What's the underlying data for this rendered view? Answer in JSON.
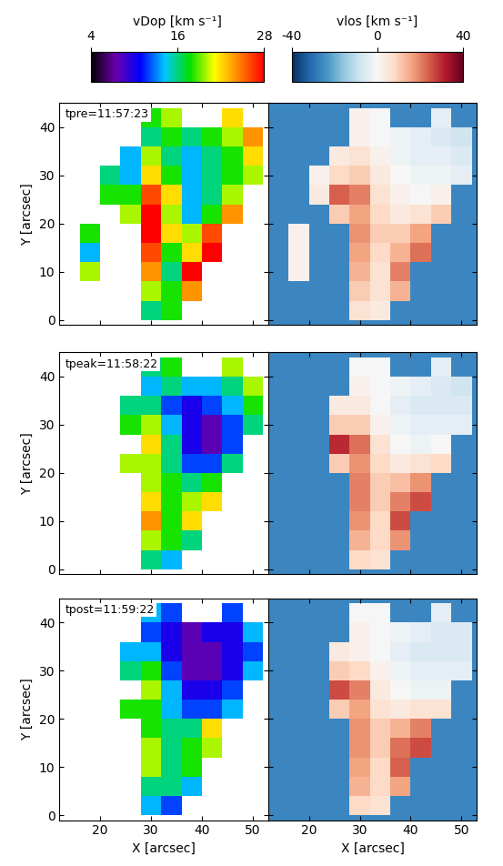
{
  "chart_data": [
    {
      "type": "heatmap",
      "annotation": "tpre=11:57:23",
      "y_label": "Y [arcsec]",
      "colorbar": {
        "label": "vDop [km s⁻¹]",
        "ticks": [
          4,
          16,
          28
        ]
      },
      "color_range": [
        4,
        28
      ],
      "xlim": [
        12,
        53
      ],
      "ylim": [
        -1,
        45
      ],
      "xticks": [
        20,
        30,
        40,
        50
      ],
      "yticks": [
        0,
        10,
        20,
        30,
        40
      ],
      "tick_labels": "y",
      "x_edges": [
        12,
        16,
        20,
        24,
        28,
        32,
        36,
        40,
        44,
        48,
        52
      ],
      "y_edges": [
        0,
        4,
        8,
        12,
        16,
        20,
        24,
        28,
        32,
        36,
        40,
        44
      ],
      "cells": [
        [
          null,
          null,
          null,
          null,
          16,
          18,
          null,
          null,
          null,
          null
        ],
        [
          null,
          null,
          null,
          null,
          20,
          18,
          24,
          null,
          null,
          null
        ],
        [
          null,
          20,
          null,
          null,
          24,
          16,
          28,
          null,
          null,
          null
        ],
        [
          null,
          14,
          null,
          null,
          26,
          18,
          22,
          28,
          null,
          null
        ],
        [
          null,
          18,
          null,
          null,
          28,
          22,
          20,
          26,
          null,
          null
        ],
        [
          null,
          null,
          null,
          20,
          28,
          20,
          14,
          18,
          24,
          null
        ],
        [
          null,
          null,
          18,
          18,
          26,
          22,
          14,
          16,
          20,
          null
        ],
        [
          null,
          null,
          16,
          14,
          22,
          18,
          14,
          16,
          18,
          20
        ],
        [
          null,
          null,
          null,
          14,
          20,
          16,
          14,
          16,
          18,
          22
        ],
        [
          null,
          null,
          null,
          null,
          16,
          18,
          16,
          18,
          20,
          24
        ],
        [
          null,
          null,
          null,
          null,
          18,
          20,
          null,
          null,
          22,
          null
        ]
      ]
    },
    {
      "type": "heatmap",
      "colorbar": {
        "label": "vlos [km s⁻¹]",
        "ticks": [
          -40,
          0,
          40
        ]
      },
      "color_range": [
        -40,
        40
      ],
      "xlim": [
        12,
        53
      ],
      "ylim": [
        -1,
        45
      ],
      "xticks": [
        20,
        30,
        40,
        50
      ],
      "yticks": [
        0,
        10,
        20,
        30,
        40
      ],
      "tick_labels": false,
      "x_edges": [
        12,
        16,
        20,
        24,
        28,
        32,
        36,
        40,
        44,
        48,
        52
      ],
      "y_edges": [
        0,
        4,
        8,
        12,
        16,
        20,
        24,
        28,
        32,
        36,
        40,
        44
      ],
      "cells": [
        [
          null,
          null,
          null,
          null,
          6,
          4,
          null,
          null,
          null,
          null
        ],
        [
          null,
          null,
          null,
          null,
          10,
          6,
          14,
          null,
          null,
          null
        ],
        [
          null,
          2,
          null,
          null,
          14,
          6,
          20,
          null,
          null,
          null
        ],
        [
          null,
          2,
          null,
          null,
          16,
          8,
          14,
          22,
          null,
          null
        ],
        [
          null,
          2,
          null,
          null,
          18,
          10,
          10,
          16,
          null,
          null
        ],
        [
          null,
          null,
          null,
          10,
          16,
          8,
          4,
          6,
          10,
          null
        ],
        [
          null,
          null,
          4,
          24,
          20,
          6,
          2,
          0,
          2,
          null
        ],
        [
          null,
          null,
          2,
          8,
          10,
          4,
          0,
          -2,
          -2,
          -4
        ],
        [
          null,
          null,
          null,
          4,
          6,
          2,
          -2,
          -4,
          -4,
          -6
        ],
        [
          null,
          null,
          null,
          null,
          2,
          0,
          -2,
          -4,
          -6,
          -8
        ],
        [
          null,
          null,
          null,
          null,
          2,
          0,
          null,
          null,
          -4,
          null
        ]
      ]
    },
    {
      "type": "heatmap",
      "annotation": "tpeak=11:58:22",
      "y_label": "Y [arcsec]",
      "color_range": [
        4,
        28
      ],
      "xlim": [
        12,
        53
      ],
      "ylim": [
        -1,
        45
      ],
      "xticks": [
        20,
        30,
        40,
        50
      ],
      "yticks": [
        0,
        10,
        20,
        30,
        40
      ],
      "tick_labels": "y",
      "x_edges": [
        12,
        16,
        20,
        24,
        28,
        32,
        36,
        40,
        44,
        48,
        52
      ],
      "y_edges": [
        0,
        4,
        8,
        12,
        16,
        20,
        24,
        28,
        32,
        36,
        40,
        44
      ],
      "cells": [
        [
          null,
          null,
          null,
          null,
          16,
          14,
          null,
          null,
          null,
          null
        ],
        [
          null,
          null,
          null,
          null,
          20,
          18,
          16,
          null,
          null,
          null
        ],
        [
          null,
          null,
          null,
          null,
          24,
          18,
          22,
          null,
          null,
          null
        ],
        [
          null,
          null,
          null,
          null,
          22,
          18,
          20,
          22,
          null,
          null
        ],
        [
          null,
          null,
          null,
          null,
          20,
          18,
          16,
          18,
          null,
          null
        ],
        [
          null,
          null,
          null,
          20,
          20,
          16,
          12,
          12,
          16,
          null
        ],
        [
          null,
          null,
          null,
          null,
          22,
          16,
          10,
          8,
          12,
          null
        ],
        [
          null,
          null,
          null,
          18,
          20,
          14,
          10,
          8,
          12,
          16
        ],
        [
          null,
          null,
          null,
          16,
          16,
          12,
          10,
          12,
          14,
          18
        ],
        [
          null,
          null,
          null,
          null,
          14,
          16,
          14,
          14,
          16,
          20
        ],
        [
          null,
          null,
          null,
          null,
          16,
          18,
          null,
          null,
          20,
          null
        ]
      ]
    },
    {
      "type": "heatmap",
      "color_range": [
        -40,
        40
      ],
      "xlim": [
        12,
        53
      ],
      "ylim": [
        -1,
        45
      ],
      "xticks": [
        20,
        30,
        40,
        50
      ],
      "yticks": [
        0,
        10,
        20,
        30,
        40
      ],
      "tick_labels": false,
      "x_edges": [
        12,
        16,
        20,
        24,
        28,
        32,
        36,
        40,
        44,
        48,
        52
      ],
      "y_edges": [
        0,
        4,
        8,
        12,
        16,
        20,
        24,
        28,
        32,
        36,
        40,
        44
      ],
      "cells": [
        [
          null,
          null,
          null,
          null,
          8,
          6,
          null,
          null,
          null,
          null
        ],
        [
          null,
          null,
          null,
          null,
          14,
          8,
          18,
          null,
          null,
          null
        ],
        [
          null,
          null,
          null,
          null,
          18,
          8,
          26,
          null,
          null,
          null
        ],
        [
          null,
          null,
          null,
          null,
          20,
          10,
          20,
          26,
          null,
          null
        ],
        [
          null,
          null,
          null,
          null,
          20,
          10,
          12,
          18,
          null,
          null
        ],
        [
          null,
          null,
          null,
          10,
          18,
          8,
          4,
          6,
          8,
          null
        ],
        [
          null,
          null,
          null,
          30,
          22,
          6,
          0,
          -2,
          0,
          null
        ],
        [
          null,
          null,
          null,
          10,
          10,
          2,
          -2,
          -4,
          -4,
          -4
        ],
        [
          null,
          null,
          null,
          4,
          4,
          0,
          -4,
          -6,
          -6,
          -6
        ],
        [
          null,
          null,
          null,
          null,
          2,
          0,
          -2,
          -4,
          -6,
          -8
        ],
        [
          null,
          null,
          null,
          null,
          0,
          0,
          null,
          null,
          -4,
          null
        ]
      ]
    },
    {
      "type": "heatmap",
      "annotation": "tpost=11:59:22",
      "y_label": "Y [arcsec]",
      "x_label": "X [arcsec]",
      "color_range": [
        4,
        28
      ],
      "xlim": [
        12,
        53
      ],
      "ylim": [
        -1,
        45
      ],
      "xticks": [
        20,
        30,
        40,
        50
      ],
      "yticks": [
        0,
        10,
        20,
        30,
        40
      ],
      "x_edges": [
        12,
        16,
        20,
        24,
        28,
        32,
        36,
        40,
        44,
        48,
        52
      ],
      "y_edges": [
        0,
        4,
        8,
        12,
        16,
        20,
        24,
        28,
        32,
        36,
        40,
        44
      ],
      "cells": [
        [
          null,
          null,
          null,
          null,
          14,
          12,
          null,
          null,
          null,
          null
        ],
        [
          null,
          null,
          null,
          null,
          16,
          16,
          14,
          null,
          null,
          null
        ],
        [
          null,
          null,
          null,
          null,
          20,
          16,
          18,
          null,
          null,
          null
        ],
        [
          null,
          null,
          null,
          null,
          20,
          16,
          18,
          20,
          null,
          null
        ],
        [
          null,
          null,
          null,
          null,
          18,
          16,
          16,
          22,
          null,
          null
        ],
        [
          null,
          null,
          null,
          18,
          18,
          14,
          12,
          12,
          14,
          null
        ],
        [
          null,
          null,
          null,
          null,
          20,
          14,
          10,
          10,
          12,
          null
        ],
        [
          null,
          null,
          null,
          16,
          18,
          12,
          8,
          8,
          10,
          14
        ],
        [
          null,
          null,
          null,
          14,
          14,
          10,
          8,
          8,
          10,
          12
        ],
        [
          null,
          null,
          null,
          null,
          12,
          10,
          8,
          10,
          10,
          14
        ],
        [
          null,
          null,
          null,
          null,
          14,
          12,
          null,
          null,
          12,
          null
        ]
      ]
    },
    {
      "type": "heatmap",
      "x_label": "X [arcsec]",
      "color_range": [
        -40,
        40
      ],
      "xlim": [
        12,
        53
      ],
      "ylim": [
        -1,
        45
      ],
      "xticks": [
        20,
        30,
        40,
        50
      ],
      "yticks": [
        0,
        10,
        20,
        30,
        40
      ],
      "tick_labels": "x",
      "x_edges": [
        12,
        16,
        20,
        24,
        28,
        32,
        36,
        40,
        44,
        48,
        52
      ],
      "y_edges": [
        0,
        4,
        8,
        12,
        16,
        20,
        24,
        28,
        32,
        36,
        40,
        44
      ],
      "cells": [
        [
          null,
          null,
          null,
          null,
          8,
          6,
          null,
          null,
          null,
          null
        ],
        [
          null,
          null,
          null,
          null,
          14,
          8,
          16,
          null,
          null,
          null
        ],
        [
          null,
          null,
          null,
          null,
          16,
          8,
          24,
          null,
          null,
          null
        ],
        [
          null,
          null,
          null,
          null,
          18,
          10,
          22,
          26,
          null,
          null
        ],
        [
          null,
          null,
          null,
          null,
          18,
          10,
          14,
          20,
          null,
          null
        ],
        [
          null,
          null,
          null,
          10,
          16,
          6,
          4,
          6,
          6,
          null
        ],
        [
          null,
          null,
          null,
          26,
          20,
          4,
          0,
          -2,
          -2,
          null
        ],
        [
          null,
          null,
          null,
          10,
          8,
          2,
          -2,
          -4,
          -4,
          -4
        ],
        [
          null,
          null,
          null,
          4,
          2,
          0,
          -4,
          -6,
          -6,
          -6
        ],
        [
          null,
          null,
          null,
          null,
          2,
          0,
          -2,
          -4,
          -6,
          -6
        ],
        [
          null,
          null,
          null,
          null,
          0,
          0,
          null,
          null,
          -4,
          null
        ]
      ]
    }
  ]
}
